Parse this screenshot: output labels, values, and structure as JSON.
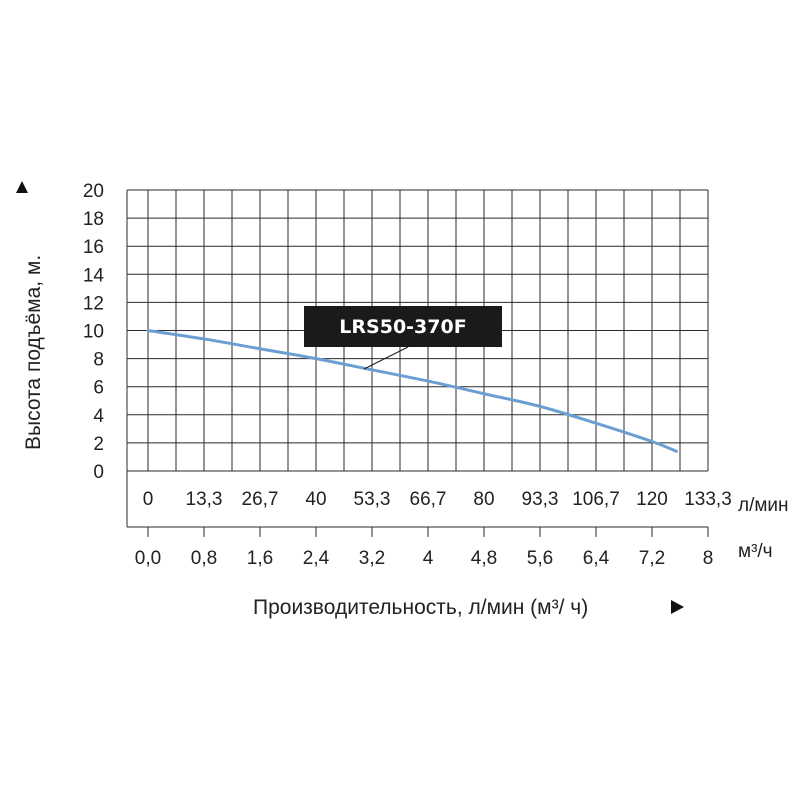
{
  "chart_data": {
    "type": "line",
    "ylabel": "Высота подъёма, м.",
    "xlabel": "Производительность, л/мин (м³/ ч)",
    "ylim": [
      0,
      20
    ],
    "yticks": [
      "0",
      "2",
      "4",
      "6",
      "8",
      "10",
      "12",
      "14",
      "16",
      "18",
      "20"
    ],
    "x_primary_unit": "л/мин",
    "x_primary_ticks": [
      "0",
      "13,3",
      "26,7",
      "40",
      "53,3",
      "66,7",
      "80",
      "93,3",
      "106,7",
      "120",
      "133,3"
    ],
    "x_secondary_unit": "м³/ч",
    "x_secondary_ticks": [
      "0,0",
      "0,8",
      "1,6",
      "2,4",
      "3,2",
      "4",
      "4,8",
      "5,6",
      "6,4",
      "7,2",
      "8"
    ],
    "xlim": [
      0,
      8
    ],
    "grid": true,
    "series": [
      {
        "name": "LRS50-370F",
        "color": "#6b9fd3",
        "x": [
          0,
          0.8,
          1.6,
          2.4,
          3.2,
          4.0,
          4.8,
          5.6,
          6.4,
          7.2,
          7.55
        ],
        "y": [
          10,
          9.4,
          8.7,
          8.0,
          7.2,
          6.4,
          5.5,
          4.6,
          3.4,
          2.1,
          1.4
        ]
      }
    ]
  }
}
